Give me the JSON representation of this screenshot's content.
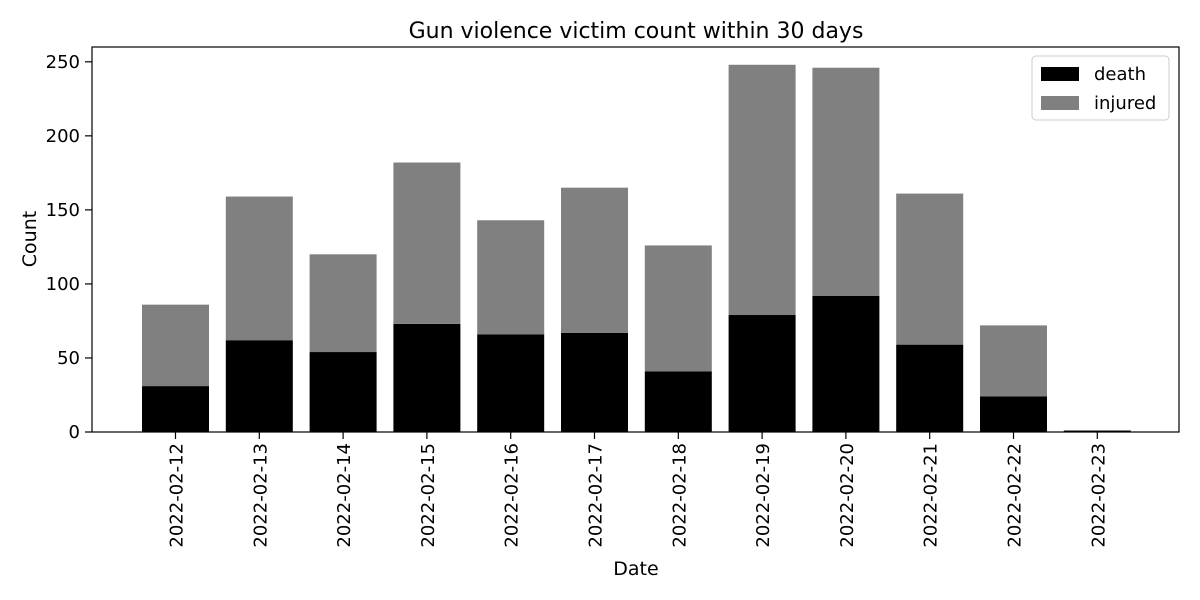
{
  "chart_data": {
    "type": "bar",
    "stacked": true,
    "title": "Gun violence victim count within 30 days",
    "xlabel": "Date",
    "ylabel": "Count",
    "ylim": [
      0,
      260
    ],
    "yticks": [
      0,
      50,
      100,
      150,
      200,
      250
    ],
    "categories": [
      "2022-02-12",
      "2022-02-13",
      "2022-02-14",
      "2022-02-15",
      "2022-02-16",
      "2022-02-17",
      "2022-02-18",
      "2022-02-19",
      "2022-02-20",
      "2022-02-21",
      "2022-02-22",
      "2022-02-23"
    ],
    "series": [
      {
        "name": "death",
        "color": "#000000",
        "values": [
          31,
          62,
          54,
          73,
          66,
          67,
          41,
          79,
          92,
          59,
          24,
          1
        ]
      },
      {
        "name": "injured",
        "color": "#808080",
        "values": [
          55,
          97,
          66,
          109,
          77,
          98,
          85,
          169,
          154,
          102,
          48,
          0
        ]
      }
    ],
    "legend": {
      "position": "top-right"
    },
    "grid": false
  }
}
